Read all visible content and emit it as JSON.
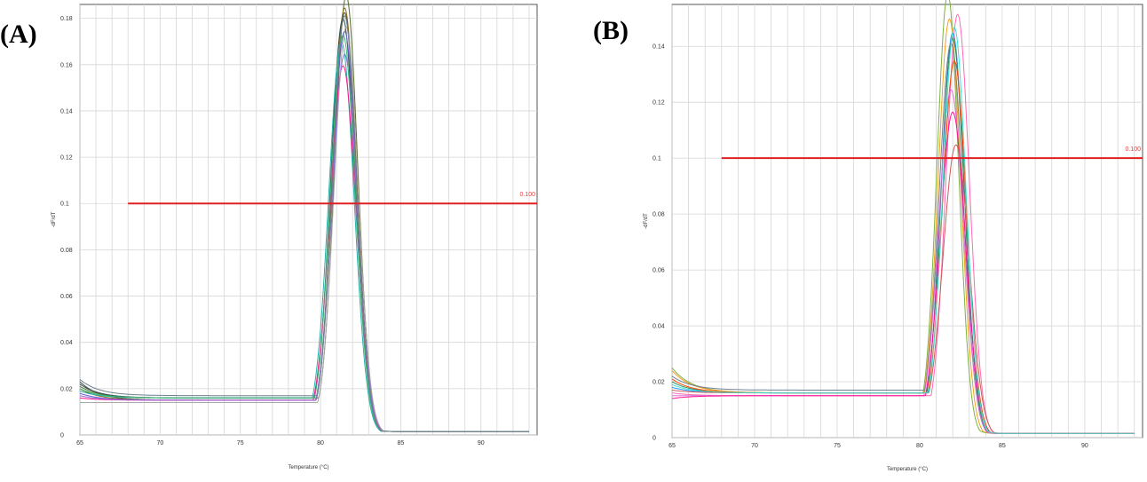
{
  "chart_data": [
    {
      "panel_label": "(A)",
      "type": "line",
      "xlabel": "Temperature (°C)",
      "ylabel": "-dF/dT",
      "xlim": [
        65,
        93.5
      ],
      "ylim": [
        0,
        0.186
      ],
      "x_ticks": [
        65,
        70,
        75,
        80,
        85,
        90
      ],
      "y_ticks": [
        0,
        0.02,
        0.04,
        0.06,
        0.08,
        0.1,
        0.12,
        0.14,
        0.16,
        0.18
      ],
      "y_tick_labels": [
        "0",
        "0.02",
        "0.04",
        "0.06",
        "0.08",
        "0.1",
        "0.12",
        "0.14",
        "0.16",
        "0.18"
      ],
      "grid": true,
      "threshold": {
        "value": 0.1,
        "x_start": 68,
        "label": "0.100",
        "color": "#e02020"
      },
      "series": [
        {
          "color": "#4a4a4a",
          "peak_x": 81.5,
          "peak": 0.178,
          "width": 0.75,
          "base_start": 0.023,
          "base": 0.015
        },
        {
          "color": "#556b2f",
          "peak_x": 81.6,
          "peak": 0.185,
          "width": 0.72,
          "base_start": 0.021,
          "base": 0.016
        },
        {
          "color": "#8b6914",
          "peak_x": 81.5,
          "peak": 0.18,
          "width": 0.74,
          "base_start": 0.02,
          "base": 0.015
        },
        {
          "color": "#2f4f4f",
          "peak_x": 81.4,
          "peak": 0.175,
          "width": 0.76,
          "base_start": 0.022,
          "base": 0.016
        },
        {
          "color": "#6a5acd",
          "peak_x": 81.5,
          "peak": 0.17,
          "width": 0.75,
          "base_start": 0.018,
          "base": 0.015
        },
        {
          "color": "#20b2aa",
          "peak_x": 81.3,
          "peak": 0.165,
          "width": 0.78,
          "base_start": 0.019,
          "base": 0.016
        },
        {
          "color": "#ff1493",
          "peak_x": 81.4,
          "peak": 0.155,
          "width": 0.8,
          "base_start": 0.016,
          "base": 0.015
        },
        {
          "color": "#9370db",
          "peak_x": 81.5,
          "peak": 0.16,
          "width": 0.77,
          "base_start": 0.017,
          "base": 0.015
        },
        {
          "color": "#a9a9a9",
          "peak_x": 81.6,
          "peak": 0.172,
          "width": 0.74,
          "base_start": 0.014,
          "base": 0.014
        },
        {
          "color": "#3cb371",
          "peak_x": 81.4,
          "peak": 0.168,
          "width": 0.76,
          "base_start": 0.02,
          "base": 0.016
        },
        {
          "color": "#708090",
          "peak_x": 81.5,
          "peak": 0.176,
          "width": 0.73,
          "base_start": 0.024,
          "base": 0.017
        }
      ]
    },
    {
      "panel_label": "(B)",
      "type": "line",
      "xlabel": "Temperature (°C)",
      "ylabel": "-dF/dT",
      "xlim": [
        65,
        93.5
      ],
      "ylim": [
        0,
        0.155
      ],
      "x_ticks": [
        65,
        70,
        75,
        80,
        85,
        90
      ],
      "y_ticks": [
        0,
        0.02,
        0.04,
        0.06,
        0.08,
        0.1,
        0.12,
        0.14
      ],
      "y_tick_labels": [
        "0",
        "0.02",
        "0.04",
        "0.06",
        "0.08",
        "0.1",
        "0.12",
        "0.14"
      ],
      "grid": true,
      "threshold": {
        "value": 0.1,
        "x_start": 68,
        "label": "0.100",
        "color": "#e02020"
      },
      "series": [
        {
          "color": "#7cb342",
          "peak_x": 81.7,
          "peak": 0.154,
          "width": 0.65,
          "base_start": 0.025,
          "base": 0.016
        },
        {
          "color": "#ff69b4",
          "peak_x": 82.3,
          "peak": 0.147,
          "width": 0.7,
          "base_start": 0.016,
          "base": 0.015
        },
        {
          "color": "#f4a020",
          "peak_x": 81.8,
          "peak": 0.145,
          "width": 0.68,
          "base_start": 0.024,
          "base": 0.016
        },
        {
          "color": "#1e90ff",
          "peak_x": 82.0,
          "peak": 0.14,
          "width": 0.7,
          "base_start": 0.018,
          "base": 0.016
        },
        {
          "color": "#2e8b57",
          "peak_x": 82.0,
          "peak": 0.138,
          "width": 0.7,
          "base_start": 0.02,
          "base": 0.016
        },
        {
          "color": "#708090",
          "peak_x": 81.9,
          "peak": 0.136,
          "width": 0.72,
          "base_start": 0.022,
          "base": 0.017
        },
        {
          "color": "#ff4500",
          "peak_x": 82.1,
          "peak": 0.13,
          "width": 0.72,
          "base_start": 0.021,
          "base": 0.016
        },
        {
          "color": "#da70d6",
          "peak_x": 81.9,
          "peak": 0.12,
          "width": 0.74,
          "base_start": 0.015,
          "base": 0.015
        },
        {
          "color": "#ff1493",
          "peak_x": 82.0,
          "peak": 0.112,
          "width": 0.76,
          "base_start": 0.014,
          "base": 0.015
        },
        {
          "color": "#cd5c5c",
          "peak_x": 82.2,
          "peak": 0.1,
          "width": 0.78,
          "base_start": 0.017,
          "base": 0.016
        },
        {
          "color": "#40e0d0",
          "peak_x": 82.1,
          "peak": 0.142,
          "width": 0.69,
          "base_start": 0.019,
          "base": 0.016
        }
      ]
    }
  ]
}
